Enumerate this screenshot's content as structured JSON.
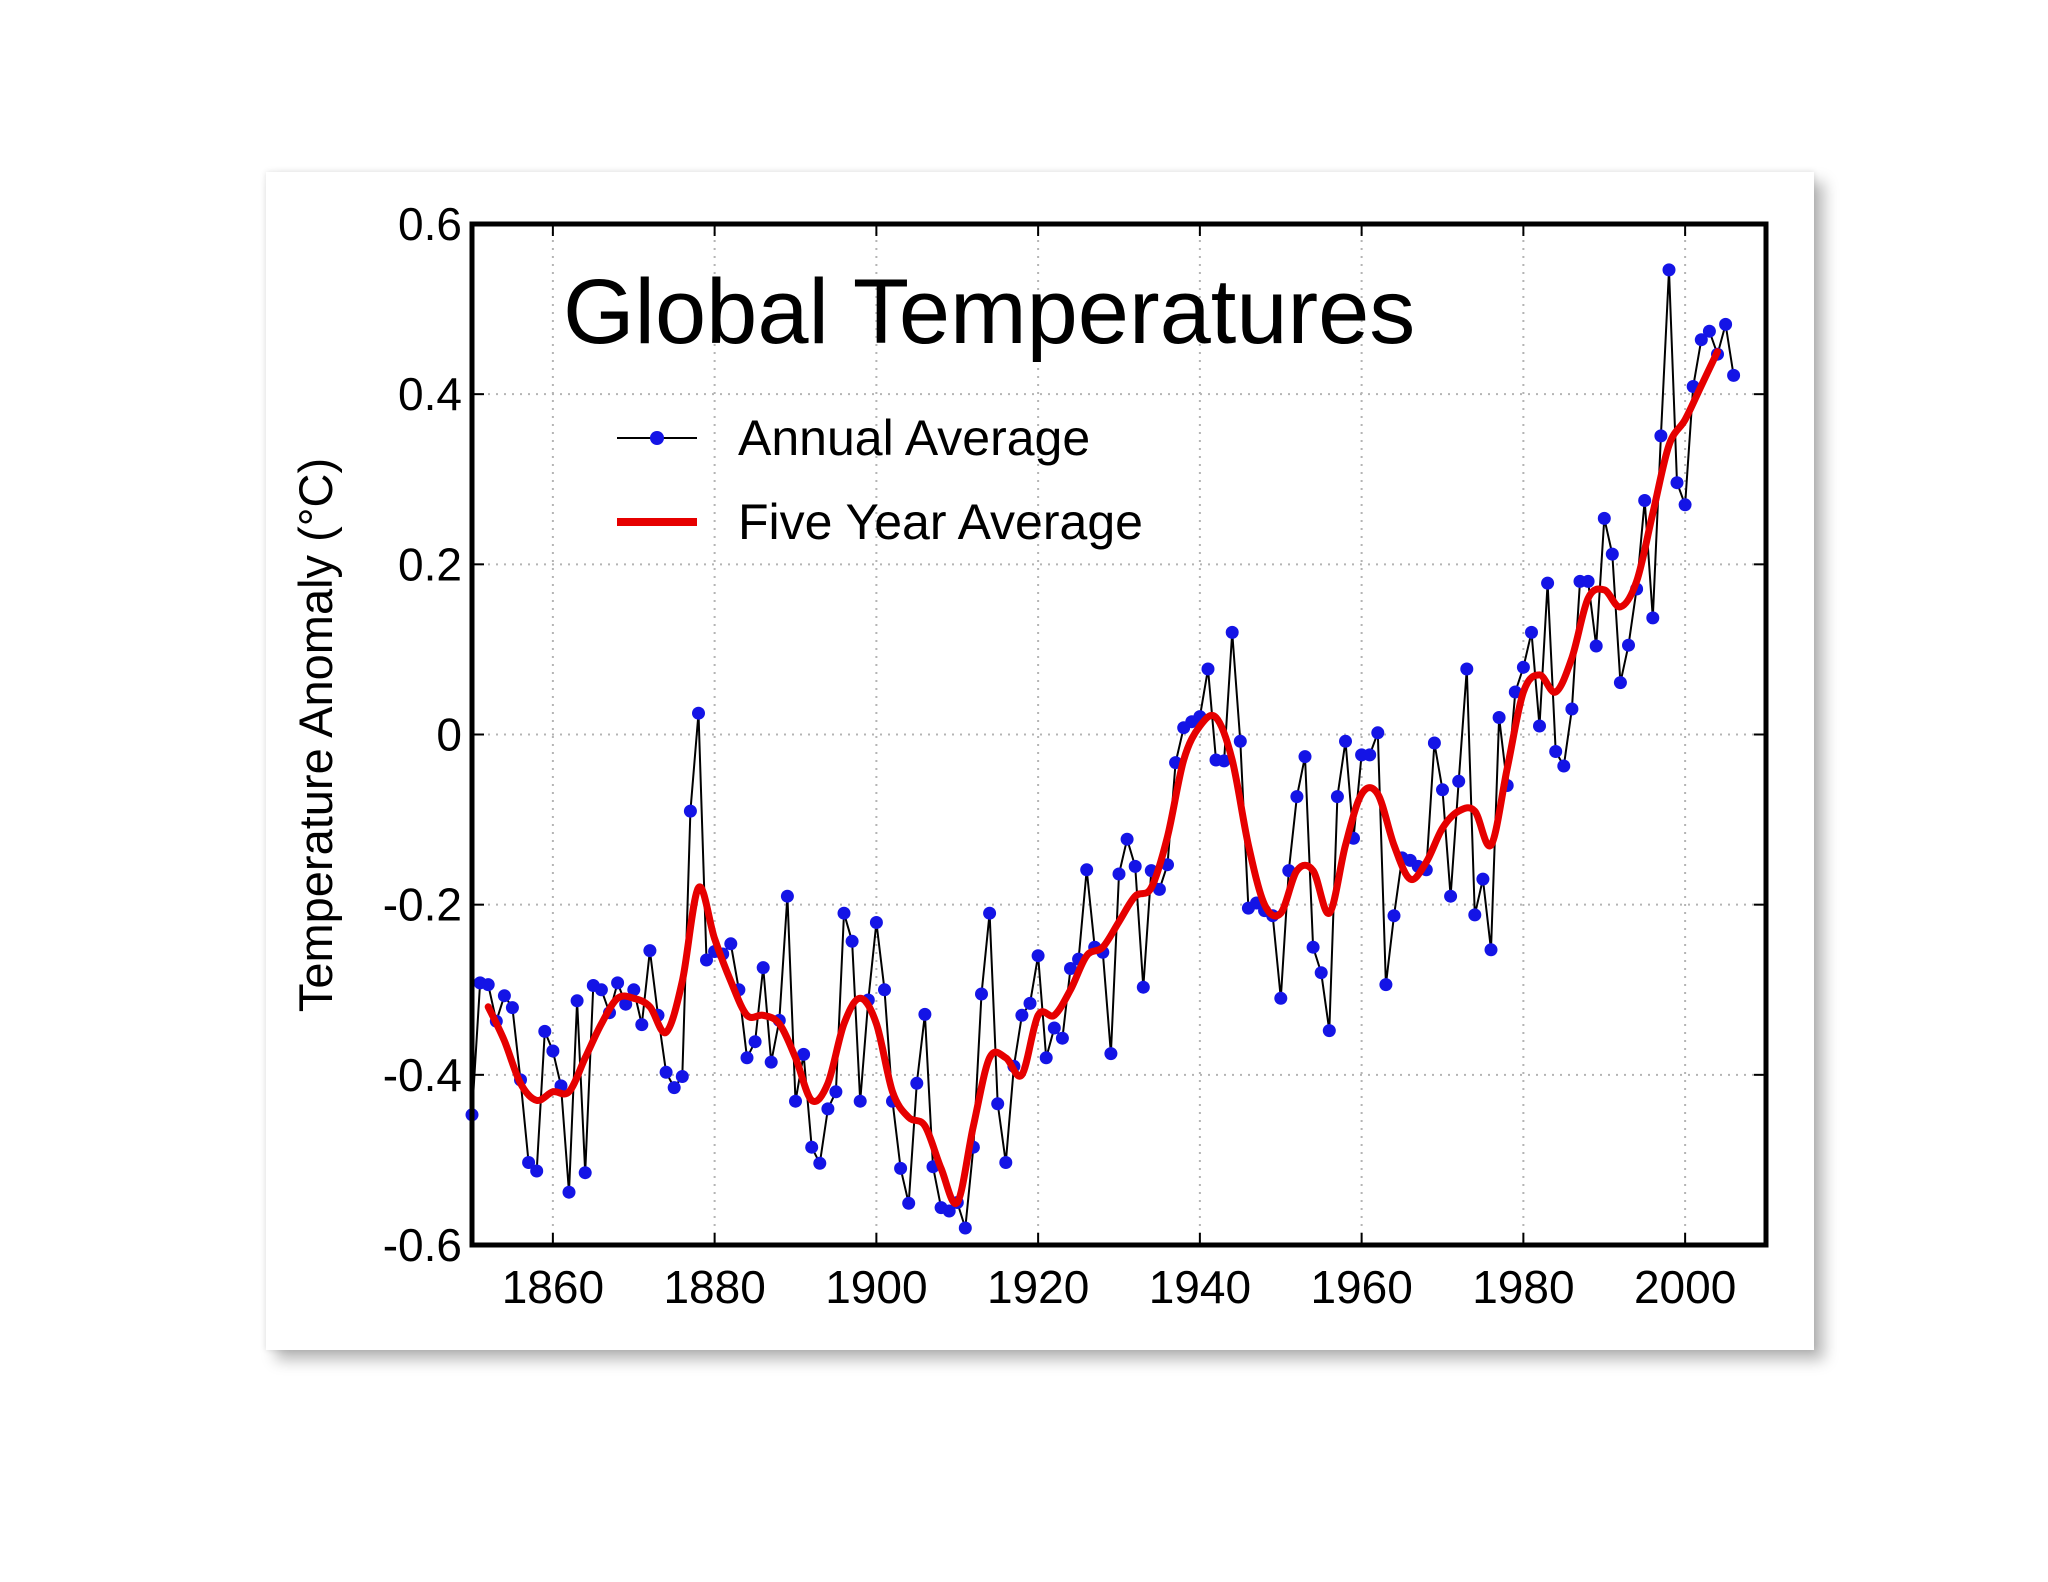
{
  "chart_data": {
    "type": "line",
    "title": "Global Temperatures",
    "xlabel": "",
    "ylabel": "Temperature Anomaly (°C)",
    "xlim": [
      1850,
      2010
    ],
    "ylim": [
      -0.6,
      0.6
    ],
    "xticks": [
      1860,
      1880,
      1900,
      1920,
      1940,
      1960,
      1980,
      2000
    ],
    "yticks": [
      0.6,
      0.4,
      0.2,
      0,
      -0.2,
      -0.4,
      -0.6
    ],
    "ytick_labels": [
      "0.6",
      "0.4",
      "0.2",
      "0",
      "-0.2",
      "-0.4",
      "-0.6"
    ],
    "xtick_labels": [
      "1860",
      "1880",
      "1900",
      "1920",
      "1940",
      "1960",
      "1980",
      "2000"
    ],
    "grid": true,
    "legend_position": "upper-left",
    "colors": {
      "annual_marker": "#1414e6",
      "annual_line": "#000000",
      "five_year_line": "#e60000"
    },
    "series": [
      {
        "name": "Annual Average",
        "style": "line-with-markers",
        "x": [
          1850,
          1851,
          1852,
          1853,
          1854,
          1855,
          1856,
          1857,
          1858,
          1859,
          1860,
          1861,
          1862,
          1863,
          1864,
          1865,
          1866,
          1867,
          1868,
          1869,
          1870,
          1871,
          1872,
          1873,
          1874,
          1875,
          1876,
          1877,
          1878,
          1879,
          1880,
          1881,
          1882,
          1883,
          1884,
          1885,
          1886,
          1887,
          1888,
          1889,
          1890,
          1891,
          1892,
          1893,
          1894,
          1895,
          1896,
          1897,
          1898,
          1899,
          1900,
          1901,
          1902,
          1903,
          1904,
          1905,
          1906,
          1907,
          1908,
          1909,
          1910,
          1911,
          1912,
          1913,
          1914,
          1915,
          1916,
          1917,
          1918,
          1919,
          1920,
          1921,
          1922,
          1923,
          1924,
          1925,
          1926,
          1927,
          1928,
          1929,
          1930,
          1931,
          1932,
          1933,
          1934,
          1935,
          1936,
          1937,
          1938,
          1939,
          1940,
          1941,
          1942,
          1943,
          1944,
          1945,
          1946,
          1947,
          1948,
          1949,
          1950,
          1951,
          1952,
          1953,
          1954,
          1955,
          1956,
          1957,
          1958,
          1959,
          1960,
          1961,
          1962,
          1963,
          1964,
          1965,
          1966,
          1967,
          1968,
          1969,
          1970,
          1971,
          1972,
          1973,
          1974,
          1975,
          1976,
          1977,
          1978,
          1979,
          1980,
          1981,
          1982,
          1983,
          1984,
          1985,
          1986,
          1987,
          1988,
          1989,
          1990,
          1991,
          1992,
          1993,
          1994,
          1995,
          1996,
          1997,
          1998,
          1999,
          2000,
          2001,
          2002,
          2003,
          2004,
          2005,
          2006
        ],
        "values": [
          -0.447,
          -0.292,
          -0.294,
          -0.337,
          -0.307,
          -0.321,
          -0.406,
          -0.503,
          -0.513,
          -0.349,
          -0.372,
          -0.413,
          -0.538,
          -0.313,
          -0.515,
          -0.295,
          -0.3,
          -0.327,
          -0.292,
          -0.317,
          -0.3,
          -0.341,
          -0.254,
          -0.33,
          -0.397,
          -0.415,
          -0.402,
          -0.09,
          0.025,
          -0.265,
          -0.255,
          -0.258,
          -0.246,
          -0.3,
          -0.38,
          -0.361,
          -0.274,
          -0.385,
          -0.336,
          -0.19,
          -0.431,
          -0.376,
          -0.485,
          -0.504,
          -0.44,
          -0.42,
          -0.21,
          -0.243,
          -0.431,
          -0.312,
          -0.221,
          -0.3,
          -0.431,
          -0.51,
          -0.551,
          -0.41,
          -0.329,
          -0.508,
          -0.556,
          -0.56,
          -0.55,
          -0.58,
          -0.485,
          -0.305,
          -0.21,
          -0.434,
          -0.503,
          -0.39,
          -0.33,
          -0.316,
          -0.26,
          -0.38,
          -0.345,
          -0.357,
          -0.275,
          -0.264,
          -0.159,
          -0.25,
          -0.256,
          -0.375,
          -0.164,
          -0.123,
          -0.155,
          -0.297,
          -0.16,
          -0.182,
          -0.153,
          -0.033,
          0.008,
          0.015,
          0.021,
          0.077,
          -0.03,
          -0.031,
          0.12,
          -0.008,
          -0.204,
          -0.198,
          -0.207,
          -0.213,
          -0.31,
          -0.16,
          -0.073,
          -0.026,
          -0.25,
          -0.28,
          -0.348,
          -0.073,
          -0.008,
          -0.122,
          -0.024,
          -0.024,
          0.002,
          -0.294,
          -0.213,
          -0.145,
          -0.148,
          -0.155,
          -0.159,
          -0.01,
          -0.065,
          -0.19,
          -0.055,
          0.077,
          -0.212,
          -0.17,
          -0.253,
          0.02,
          -0.06,
          0.05,
          0.079,
          0.12,
          0.01,
          0.178,
          -0.02,
          -0.037,
          0.03,
          0.18,
          0.18,
          0.104,
          0.254,
          0.212,
          0.061,
          0.105,
          0.171,
          0.275,
          0.137,
          0.351,
          0.546,
          0.296,
          0.27,
          0.409,
          0.464,
          0.474,
          0.447,
          0.482,
          0.422
        ]
      },
      {
        "name": "Five Year Average",
        "style": "smooth-line",
        "x": [
          1852,
          1854,
          1856,
          1858,
          1860,
          1862,
          1864,
          1866,
          1868,
          1870,
          1872,
          1874,
          1876,
          1878,
          1880,
          1882,
          1884,
          1886,
          1888,
          1890,
          1892,
          1894,
          1896,
          1898,
          1900,
          1902,
          1904,
          1906,
          1908,
          1910,
          1912,
          1914,
          1916,
          1918,
          1920,
          1922,
          1924,
          1926,
          1928,
          1930,
          1932,
          1934,
          1936,
          1938,
          1940,
          1942,
          1944,
          1946,
          1948,
          1950,
          1952,
          1954,
          1956,
          1958,
          1960,
          1962,
          1964,
          1966,
          1968,
          1970,
          1972,
          1974,
          1976,
          1978,
          1980,
          1982,
          1984,
          1986,
          1988,
          1990,
          1992,
          1994,
          1996,
          1998,
          2000,
          2002,
          2004
        ],
        "values": [
          -0.32,
          -0.36,
          -0.41,
          -0.43,
          -0.42,
          -0.42,
          -0.38,
          -0.34,
          -0.31,
          -0.31,
          -0.32,
          -0.35,
          -0.29,
          -0.18,
          -0.24,
          -0.29,
          -0.33,
          -0.33,
          -0.34,
          -0.38,
          -0.43,
          -0.41,
          -0.34,
          -0.31,
          -0.34,
          -0.42,
          -0.45,
          -0.46,
          -0.51,
          -0.55,
          -0.46,
          -0.38,
          -0.38,
          -0.4,
          -0.33,
          -0.33,
          -0.3,
          -0.26,
          -0.25,
          -0.22,
          -0.19,
          -0.18,
          -0.12,
          -0.03,
          0.01,
          0.02,
          -0.03,
          -0.13,
          -0.2,
          -0.21,
          -0.16,
          -0.16,
          -0.21,
          -0.13,
          -0.07,
          -0.07,
          -0.13,
          -0.17,
          -0.15,
          -0.11,
          -0.09,
          -0.09,
          -0.13,
          -0.04,
          0.05,
          0.07,
          0.05,
          0.09,
          0.16,
          0.17,
          0.15,
          0.18,
          0.26,
          0.34,
          0.37,
          0.41,
          0.45
        ]
      }
    ]
  }
}
